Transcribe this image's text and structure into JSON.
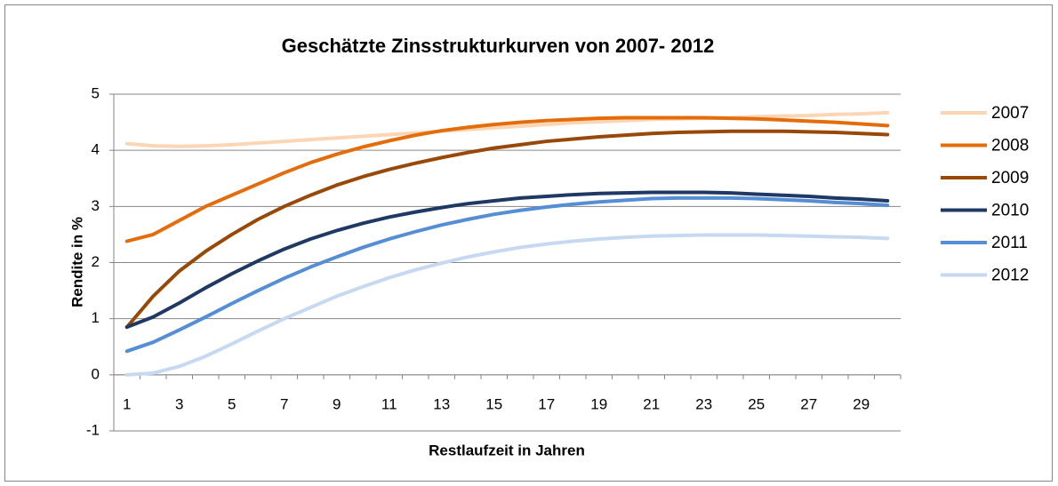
{
  "chart_data": {
    "type": "line",
    "title": "Geschätzte Zinsstrukturkurven von 2007- 2012",
    "x_label": "Restlaufzeit in Jahren",
    "y_label": "Rendite in %",
    "categories": [
      1,
      null,
      3,
      null,
      5,
      null,
      7,
      null,
      9,
      null,
      11,
      null,
      13,
      null,
      15,
      null,
      17,
      null,
      19,
      null,
      21,
      null,
      23,
      null,
      25,
      null,
      27,
      null,
      29,
      null
    ],
    "ylim": [
      -1,
      5
    ],
    "yticks": [
      -1,
      0,
      1,
      2,
      3,
      4,
      5
    ],
    "grid": true,
    "legend": "right",
    "series": [
      {
        "name": "2007",
        "color": "#fcd5b5",
        "values": [
          4.12,
          4.08,
          4.07,
          4.08,
          4.1,
          4.13,
          4.16,
          4.19,
          4.22,
          4.25,
          4.28,
          4.31,
          4.34,
          4.37,
          4.4,
          4.43,
          4.46,
          4.49,
          4.51,
          4.53,
          4.55,
          4.56,
          4.57,
          4.58,
          4.6,
          4.61,
          4.62,
          4.64,
          4.65,
          4.67
        ]
      },
      {
        "name": "2008",
        "color": "#e46c0a",
        "values": [
          2.38,
          2.5,
          2.75,
          3.0,
          3.2,
          3.4,
          3.6,
          3.78,
          3.93,
          4.06,
          4.17,
          4.27,
          4.35,
          4.41,
          4.46,
          4.5,
          4.53,
          4.55,
          4.57,
          4.58,
          4.58,
          4.58,
          4.58,
          4.57,
          4.56,
          4.54,
          4.52,
          4.5,
          4.47,
          4.44
        ]
      },
      {
        "name": "2009",
        "color": "#984807",
        "values": [
          0.85,
          1.4,
          1.85,
          2.2,
          2.5,
          2.77,
          3.0,
          3.2,
          3.38,
          3.53,
          3.66,
          3.77,
          3.87,
          3.96,
          4.04,
          4.1,
          4.16,
          4.2,
          4.24,
          4.27,
          4.3,
          4.32,
          4.33,
          4.34,
          4.34,
          4.34,
          4.33,
          4.32,
          4.3,
          4.28
        ]
      },
      {
        "name": "2010",
        "color": "#1f3864",
        "values": [
          0.85,
          1.03,
          1.28,
          1.55,
          1.8,
          2.03,
          2.24,
          2.42,
          2.57,
          2.7,
          2.81,
          2.9,
          2.98,
          3.05,
          3.1,
          3.15,
          3.18,
          3.21,
          3.23,
          3.24,
          3.25,
          3.25,
          3.25,
          3.24,
          3.22,
          3.2,
          3.18,
          3.15,
          3.13,
          3.1
        ]
      },
      {
        "name": "2011",
        "color": "#558ed5",
        "values": [
          0.42,
          0.58,
          0.8,
          1.03,
          1.27,
          1.5,
          1.72,
          1.92,
          2.1,
          2.27,
          2.42,
          2.55,
          2.67,
          2.77,
          2.86,
          2.93,
          2.99,
          3.04,
          3.08,
          3.11,
          3.14,
          3.15,
          3.15,
          3.15,
          3.14,
          3.12,
          3.1,
          3.07,
          3.05,
          3.02
        ]
      },
      {
        "name": "2012",
        "color": "#c6d9f1",
        "values": [
          0.0,
          0.03,
          0.15,
          0.33,
          0.55,
          0.78,
          1.0,
          1.2,
          1.4,
          1.57,
          1.73,
          1.87,
          1.99,
          2.1,
          2.19,
          2.27,
          2.33,
          2.38,
          2.42,
          2.45,
          2.47,
          2.48,
          2.49,
          2.49,
          2.49,
          2.48,
          2.47,
          2.46,
          2.45,
          2.43
        ]
      }
    ]
  }
}
